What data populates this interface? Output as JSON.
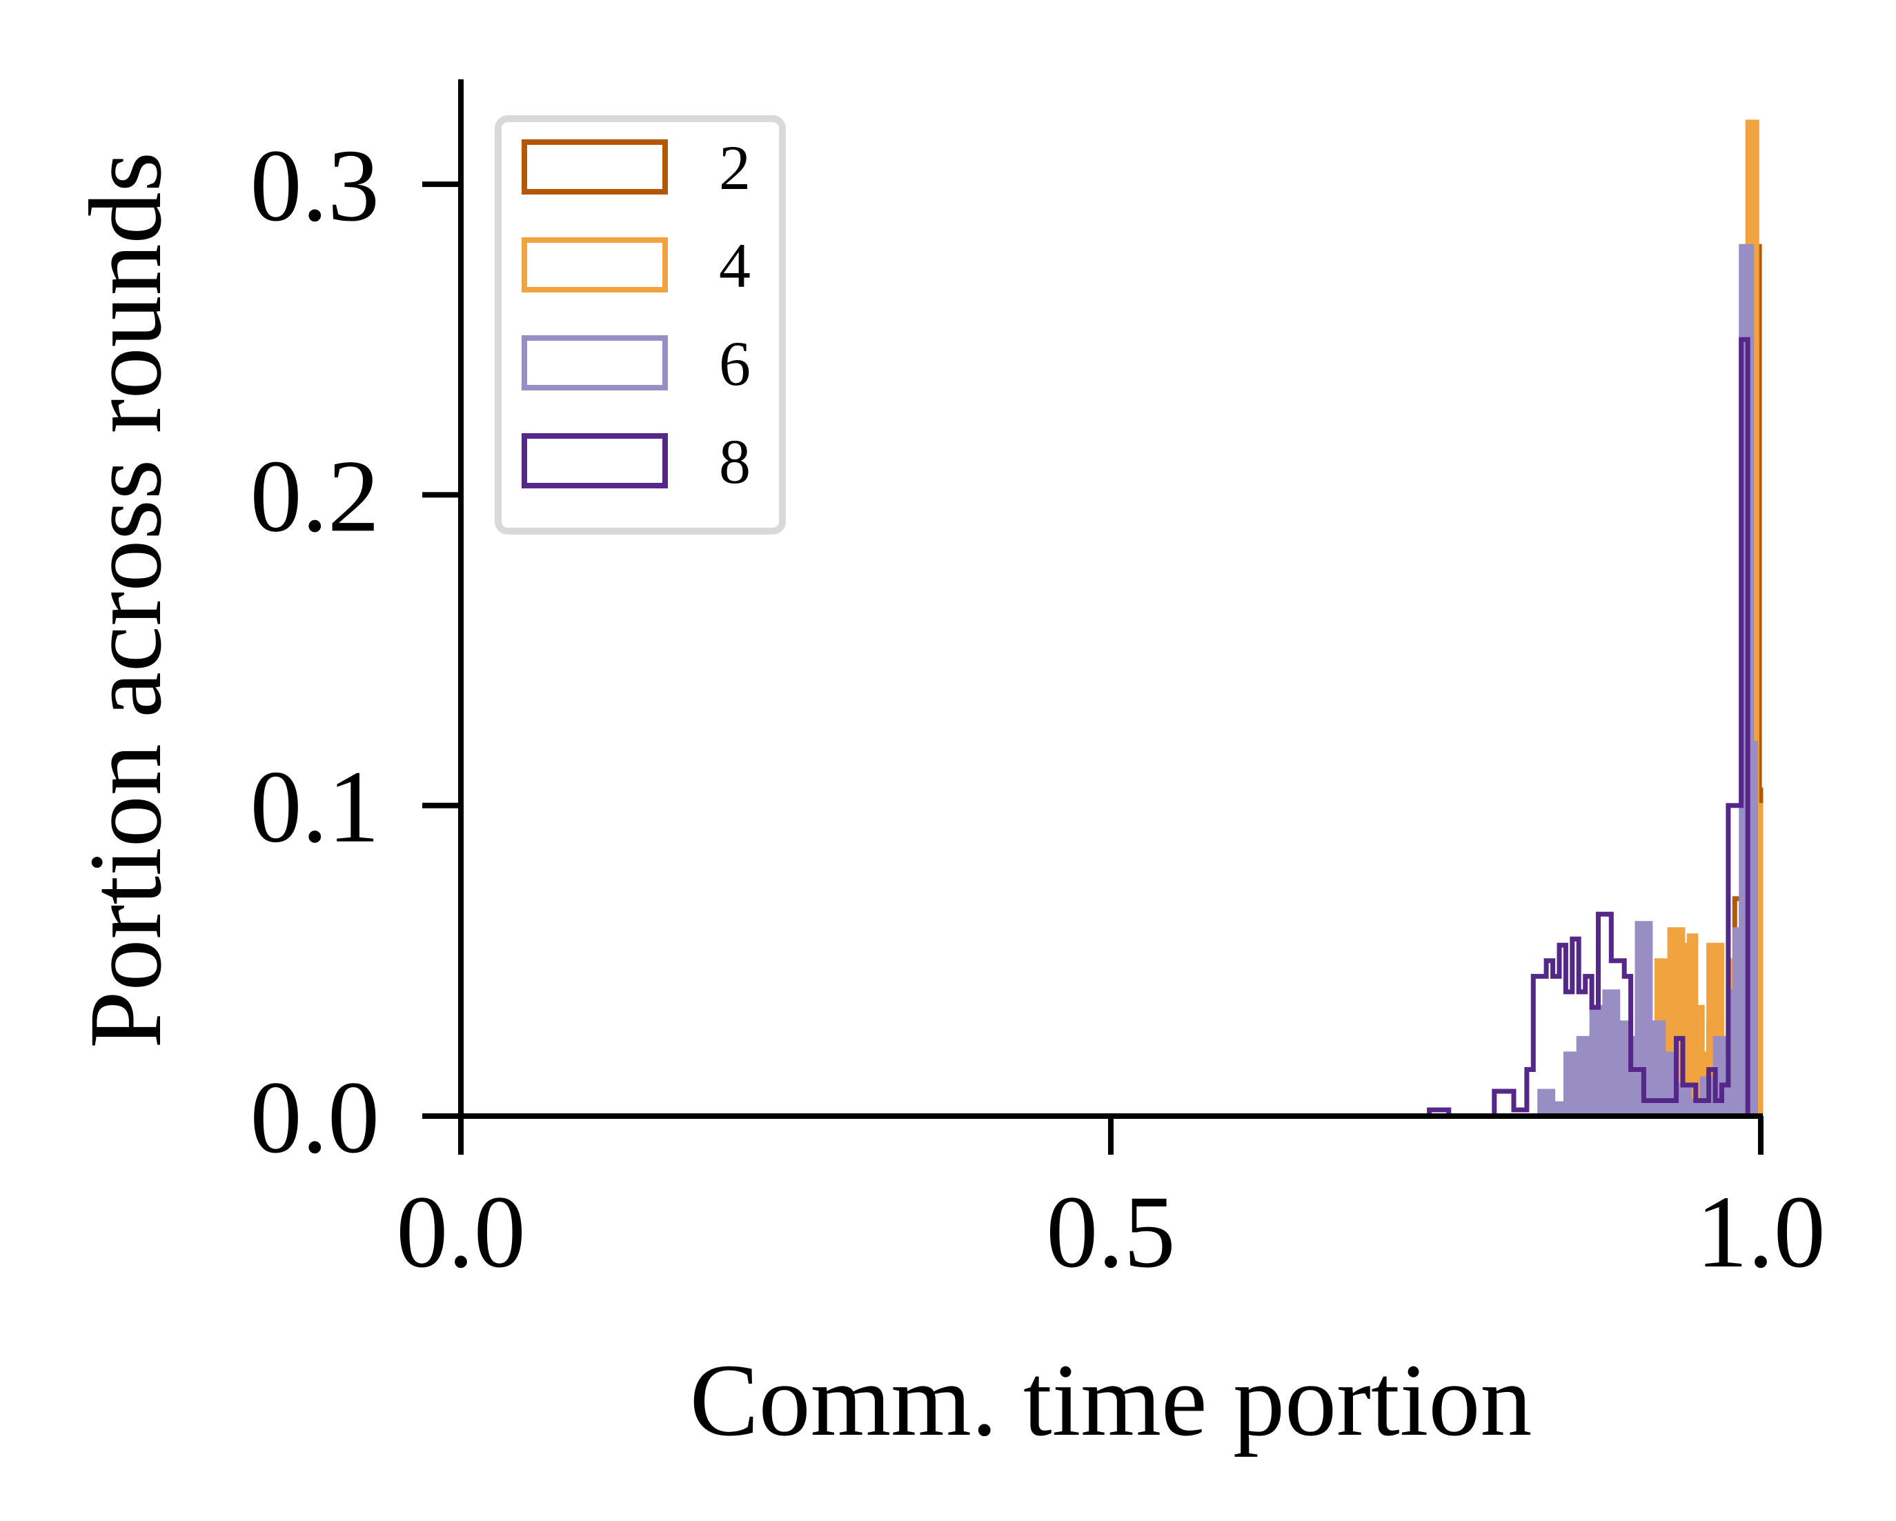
{
  "chart_data": {
    "type": "histogram",
    "title": "",
    "xlabel": "Comm. time portion",
    "ylabel": "Portion across rounds",
    "xlim": [
      0.0,
      1.0
    ],
    "ylim": [
      0.0,
      0.33
    ],
    "xticks": [
      "0.0",
      "0.5",
      "1.0"
    ],
    "yticks": [
      "0.0",
      "0.1",
      "0.2",
      "0.3"
    ],
    "xtick_values": [
      0.0,
      0.5,
      1.0
    ],
    "ytick_values": [
      0.0,
      0.1,
      0.2,
      0.3
    ],
    "grid": false,
    "legend_placement": "top-left",
    "series": [
      {
        "name": "2",
        "color": "#b35806",
        "fill": false,
        "points": [
          [
            0.955,
            0.0
          ],
          [
            0.955,
            0.01
          ],
          [
            0.96,
            0.01
          ],
          [
            0.96,
            0.03
          ],
          [
            0.965,
            0.03
          ],
          [
            0.965,
            0.015
          ],
          [
            0.97,
            0.015
          ],
          [
            0.97,
            0.01
          ],
          [
            0.975,
            0.01
          ],
          [
            0.975,
            0.03
          ],
          [
            0.98,
            0.03
          ],
          [
            0.98,
            0.07
          ],
          [
            0.985,
            0.07
          ],
          [
            0.985,
            0.045
          ],
          [
            0.99,
            0.045
          ],
          [
            0.99,
            0.025
          ],
          [
            0.995,
            0.025
          ],
          [
            0.995,
            0.28
          ],
          [
            0.999,
            0.28
          ],
          [
            0.999,
            0.105
          ],
          [
            1.0,
            0.105
          ],
          [
            1.0,
            0.0
          ]
        ]
      },
      {
        "name": "4",
        "color": "#f1a340",
        "fill": true,
        "points": [
          [
            0.88,
            0.0
          ],
          [
            0.88,
            0.002
          ],
          [
            0.905,
            0.002
          ],
          [
            0.905,
            0.004
          ],
          [
            0.915,
            0.004
          ],
          [
            0.915,
            0.03
          ],
          [
            0.92,
            0.03
          ],
          [
            0.92,
            0.05
          ],
          [
            0.93,
            0.05
          ],
          [
            0.93,
            0.06
          ],
          [
            0.94,
            0.06
          ],
          [
            0.94,
            0.055
          ],
          [
            0.945,
            0.055
          ],
          [
            0.945,
            0.058
          ],
          [
            0.95,
            0.058
          ],
          [
            0.95,
            0.035
          ],
          [
            0.955,
            0.035
          ],
          [
            0.955,
            0.02
          ],
          [
            0.96,
            0.02
          ],
          [
            0.96,
            0.055
          ],
          [
            0.97,
            0.055
          ],
          [
            0.97,
            0.025
          ],
          [
            0.975,
            0.025
          ],
          [
            0.975,
            0.05
          ],
          [
            0.98,
            0.05
          ],
          [
            0.98,
            0.01
          ],
          [
            0.985,
            0.01
          ],
          [
            0.985,
            0.05
          ],
          [
            0.99,
            0.05
          ],
          [
            0.99,
            0.32
          ],
          [
            0.997,
            0.32
          ],
          [
            0.997,
            0.1
          ],
          [
            1.0,
            0.1
          ],
          [
            1.0,
            0.0
          ]
        ]
      },
      {
        "name": "6",
        "color": "#998ec3",
        "fill": true,
        "points": [
          [
            0.83,
            0.0
          ],
          [
            0.83,
            0.008
          ],
          [
            0.84,
            0.008
          ],
          [
            0.84,
            0.004
          ],
          [
            0.85,
            0.004
          ],
          [
            0.85,
            0.02
          ],
          [
            0.86,
            0.02
          ],
          [
            0.86,
            0.025
          ],
          [
            0.87,
            0.025
          ],
          [
            0.87,
            0.035
          ],
          [
            0.88,
            0.035
          ],
          [
            0.88,
            0.04
          ],
          [
            0.89,
            0.04
          ],
          [
            0.89,
            0.03
          ],
          [
            0.9,
            0.03
          ],
          [
            0.9,
            0.025
          ],
          [
            0.905,
            0.025
          ],
          [
            0.905,
            0.062
          ],
          [
            0.915,
            0.062
          ],
          [
            0.915,
            0.03
          ],
          [
            0.925,
            0.03
          ],
          [
            0.925,
            0.02
          ],
          [
            0.935,
            0.02
          ],
          [
            0.935,
            0.01
          ],
          [
            0.945,
            0.01
          ],
          [
            0.945,
            0.005
          ],
          [
            0.955,
            0.005
          ],
          [
            0.955,
            0.012
          ],
          [
            0.965,
            0.012
          ],
          [
            0.965,
            0.025
          ],
          [
            0.975,
            0.025
          ],
          [
            0.975,
            0.04
          ],
          [
            0.98,
            0.04
          ],
          [
            0.98,
            0.06
          ],
          [
            0.985,
            0.06
          ],
          [
            0.985,
            0.28
          ],
          [
            0.993,
            0.28
          ],
          [
            0.993,
            0.12
          ],
          [
            0.996,
            0.12
          ],
          [
            0.996,
            0.0
          ]
        ]
      },
      {
        "name": "8",
        "color": "#542788",
        "fill": false,
        "points": [
          [
            0.745,
            0.0
          ],
          [
            0.745,
            0.002
          ],
          [
            0.76,
            0.002
          ],
          [
            0.76,
            0.0
          ],
          [
            0.795,
            0.0
          ],
          [
            0.795,
            0.008
          ],
          [
            0.81,
            0.008
          ],
          [
            0.81,
            0.002
          ],
          [
            0.82,
            0.002
          ],
          [
            0.82,
            0.015
          ],
          [
            0.825,
            0.015
          ],
          [
            0.825,
            0.045
          ],
          [
            0.835,
            0.045
          ],
          [
            0.835,
            0.05
          ],
          [
            0.84,
            0.05
          ],
          [
            0.84,
            0.045
          ],
          [
            0.845,
            0.045
          ],
          [
            0.845,
            0.055
          ],
          [
            0.85,
            0.055
          ],
          [
            0.85,
            0.04
          ],
          [
            0.855,
            0.04
          ],
          [
            0.855,
            0.057
          ],
          [
            0.86,
            0.057
          ],
          [
            0.86,
            0.04
          ],
          [
            0.865,
            0.04
          ],
          [
            0.865,
            0.045
          ],
          [
            0.87,
            0.045
          ],
          [
            0.87,
            0.035
          ],
          [
            0.875,
            0.035
          ],
          [
            0.875,
            0.065
          ],
          [
            0.885,
            0.065
          ],
          [
            0.885,
            0.05
          ],
          [
            0.895,
            0.05
          ],
          [
            0.895,
            0.045
          ],
          [
            0.9,
            0.045
          ],
          [
            0.9,
            0.015
          ],
          [
            0.91,
            0.015
          ],
          [
            0.91,
            0.005
          ],
          [
            0.935,
            0.005
          ],
          [
            0.935,
            0.025
          ],
          [
            0.94,
            0.025
          ],
          [
            0.94,
            0.01
          ],
          [
            0.95,
            0.01
          ],
          [
            0.95,
            0.005
          ],
          [
            0.96,
            0.005
          ],
          [
            0.96,
            0.015
          ],
          [
            0.965,
            0.015
          ],
          [
            0.965,
            0.005
          ],
          [
            0.97,
            0.005
          ],
          [
            0.97,
            0.01
          ],
          [
            0.975,
            0.01
          ],
          [
            0.975,
            0.1
          ],
          [
            0.985,
            0.1
          ],
          [
            0.985,
            0.25
          ],
          [
            0.99,
            0.25
          ],
          [
            0.99,
            0.0
          ]
        ]
      }
    ]
  }
}
